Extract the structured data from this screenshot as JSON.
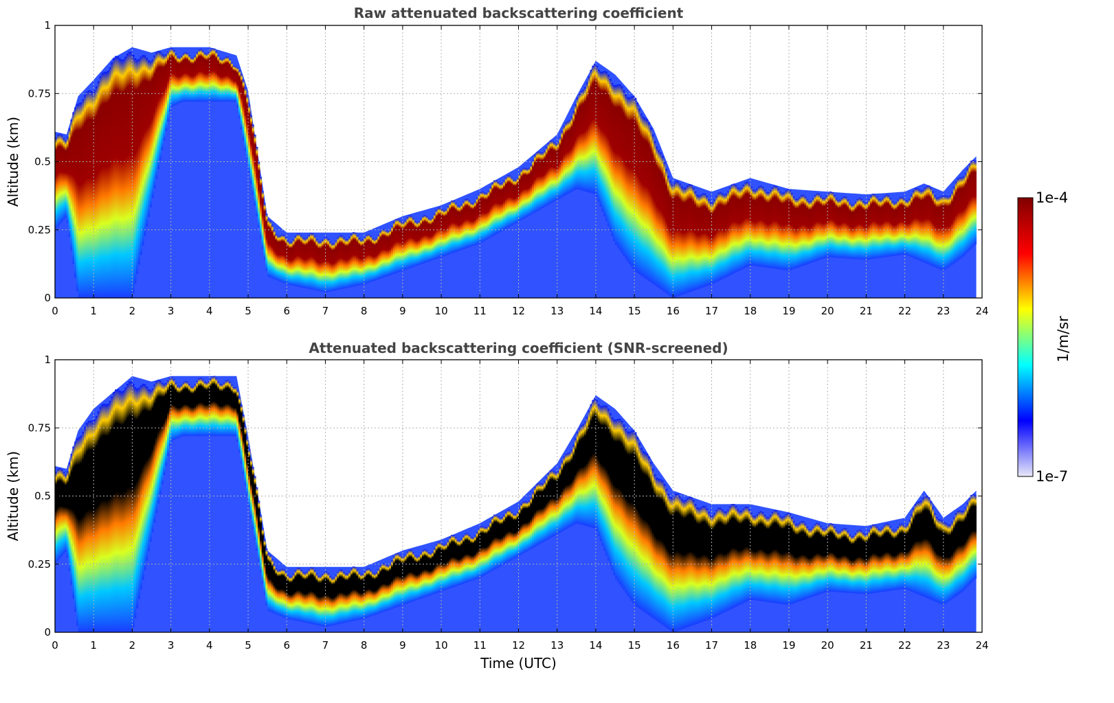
{
  "chart_data": [
    {
      "type": "heatmap",
      "title": "Raw attenuated backscattering coefficient",
      "xlabel": "",
      "ylabel": "Altitude (km)",
      "xlim": [
        0,
        24
      ],
      "ylim": [
        0,
        1
      ],
      "xticks": [
        "0",
        "1",
        "2",
        "3",
        "4",
        "5",
        "6",
        "7",
        "8",
        "9",
        "10",
        "11",
        "12",
        "13",
        "14",
        "15",
        "16",
        "17",
        "18",
        "19",
        "20",
        "21",
        "22",
        "23",
        "24"
      ],
      "yticks": [
        "0",
        "0.25",
        "0.5",
        "0.75",
        "1"
      ],
      "grid": true,
      "black_saturated_core": false,
      "layer_top_km": [
        [
          0,
          0.59
        ],
        [
          0.3,
          0.58
        ],
        [
          0.6,
          0.72
        ],
        [
          1.0,
          0.78
        ],
        [
          1.5,
          0.86
        ],
        [
          2.0,
          0.9
        ],
        [
          2.5,
          0.88
        ],
        [
          3.0,
          0.9
        ],
        [
          3.5,
          0.9
        ],
        [
          4.0,
          0.9
        ],
        [
          4.7,
          0.87
        ],
        [
          5.0,
          0.74
        ],
        [
          5.5,
          0.28
        ],
        [
          6.0,
          0.22
        ],
        [
          7.0,
          0.22
        ],
        [
          8.0,
          0.22
        ],
        [
          9.0,
          0.28
        ],
        [
          10.0,
          0.32
        ],
        [
          11.0,
          0.38
        ],
        [
          12.0,
          0.46
        ],
        [
          13.0,
          0.58
        ],
        [
          13.5,
          0.72
        ],
        [
          14.0,
          0.85
        ],
        [
          14.5,
          0.8
        ],
        [
          15.0,
          0.72
        ],
        [
          15.5,
          0.6
        ],
        [
          16.0,
          0.42
        ],
        [
          17.0,
          0.37
        ],
        [
          18.0,
          0.42
        ],
        [
          19.0,
          0.38
        ],
        [
          20.0,
          0.37
        ],
        [
          21.0,
          0.36
        ],
        [
          22.0,
          0.37
        ],
        [
          22.5,
          0.4
        ],
        [
          23.0,
          0.37
        ],
        [
          23.5,
          0.45
        ],
        [
          23.85,
          0.5
        ]
      ],
      "layer_base_km": [
        [
          0,
          0.25
        ],
        [
          0.3,
          0.3
        ],
        [
          0.6,
          0
        ],
        [
          1.0,
          0
        ],
        [
          2.0,
          0
        ],
        [
          3.0,
          0.7
        ],
        [
          3.3,
          0.72
        ],
        [
          4.7,
          0.72
        ],
        [
          5.5,
          0.08
        ],
        [
          6.0,
          0.05
        ],
        [
          7.0,
          0.02
        ],
        [
          8.0,
          0.05
        ],
        [
          9.0,
          0.1
        ],
        [
          10.0,
          0.15
        ],
        [
          11.0,
          0.2
        ],
        [
          12.0,
          0.28
        ],
        [
          13.0,
          0.36
        ],
        [
          13.5,
          0.4
        ],
        [
          14.0,
          0.38
        ],
        [
          14.5,
          0.2
        ],
        [
          15.0,
          0.1
        ],
        [
          15.5,
          0.05
        ],
        [
          16.0,
          0
        ],
        [
          17.0,
          0.05
        ],
        [
          18.0,
          0.12
        ],
        [
          19.0,
          0.1
        ],
        [
          20.0,
          0.15
        ],
        [
          21.0,
          0.14
        ],
        [
          22.0,
          0.16
        ],
        [
          23.0,
          0.1
        ],
        [
          23.5,
          0.15
        ],
        [
          23.85,
          0.2
        ]
      ],
      "data_end_hour": 23.85
    },
    {
      "type": "heatmap",
      "title": "Attenuated backscattering coefficient (SNR-screened)",
      "xlabel": "Time (UTC)",
      "ylabel": "Altitude (km)",
      "xlim": [
        0,
        24
      ],
      "ylim": [
        0,
        1
      ],
      "xticks": [
        "0",
        "1",
        "2",
        "3",
        "4",
        "5",
        "6",
        "7",
        "8",
        "9",
        "10",
        "11",
        "12",
        "13",
        "14",
        "15",
        "16",
        "17",
        "18",
        "19",
        "20",
        "21",
        "22",
        "23",
        "24"
      ],
      "yticks": [
        "0",
        "0.25",
        "0.5",
        "0.75",
        "1"
      ],
      "grid": true,
      "black_saturated_core": true,
      "layer_top_km": [
        [
          0,
          0.59
        ],
        [
          0.3,
          0.58
        ],
        [
          0.6,
          0.72
        ],
        [
          1.0,
          0.8
        ],
        [
          1.5,
          0.86
        ],
        [
          2.0,
          0.92
        ],
        [
          2.5,
          0.9
        ],
        [
          3.0,
          0.92
        ],
        [
          3.5,
          0.92
        ],
        [
          4.0,
          0.92
        ],
        [
          4.7,
          0.92
        ],
        [
          5.0,
          0.7
        ],
        [
          5.5,
          0.28
        ],
        [
          6.0,
          0.22
        ],
        [
          7.0,
          0.22
        ],
        [
          8.0,
          0.22
        ],
        [
          9.0,
          0.28
        ],
        [
          10.0,
          0.32
        ],
        [
          11.0,
          0.38
        ],
        [
          12.0,
          0.46
        ],
        [
          13.0,
          0.6
        ],
        [
          13.5,
          0.72
        ],
        [
          14.0,
          0.85
        ],
        [
          14.5,
          0.8
        ],
        [
          15.0,
          0.72
        ],
        [
          15.5,
          0.6
        ],
        [
          16.0,
          0.5
        ],
        [
          17.0,
          0.45
        ],
        [
          18.0,
          0.45
        ],
        [
          19.0,
          0.42
        ],
        [
          20.0,
          0.38
        ],
        [
          21.0,
          0.37
        ],
        [
          22.0,
          0.4
        ],
        [
          22.5,
          0.5
        ],
        [
          23.0,
          0.4
        ],
        [
          23.5,
          0.45
        ],
        [
          23.85,
          0.5
        ]
      ],
      "layer_base_km": [
        [
          0,
          0.25
        ],
        [
          0.3,
          0.3
        ],
        [
          0.6,
          0
        ],
        [
          1.0,
          0
        ],
        [
          2.0,
          0
        ],
        [
          3.0,
          0.7
        ],
        [
          3.3,
          0.72
        ],
        [
          4.7,
          0.72
        ],
        [
          5.5,
          0.08
        ],
        [
          6.0,
          0.05
        ],
        [
          7.0,
          0.02
        ],
        [
          8.0,
          0.05
        ],
        [
          9.0,
          0.1
        ],
        [
          10.0,
          0.15
        ],
        [
          11.0,
          0.2
        ],
        [
          12.0,
          0.28
        ],
        [
          13.0,
          0.36
        ],
        [
          13.5,
          0.4
        ],
        [
          14.0,
          0.38
        ],
        [
          14.5,
          0.2
        ],
        [
          15.0,
          0.1
        ],
        [
          15.5,
          0.05
        ],
        [
          16.0,
          0
        ],
        [
          17.0,
          0.05
        ],
        [
          18.0,
          0.12
        ],
        [
          19.0,
          0.1
        ],
        [
          20.0,
          0.15
        ],
        [
          21.0,
          0.14
        ],
        [
          22.0,
          0.16
        ],
        [
          23.0,
          0.1
        ],
        [
          23.5,
          0.15
        ],
        [
          23.85,
          0.2
        ]
      ],
      "data_end_hour": 23.85
    }
  ],
  "colorbar": {
    "label": "1/m/sr",
    "max_label": "1e-4",
    "min_label": "1e-7",
    "colormap": "jet",
    "colors": [
      "#e8e8f8",
      "#0000ff",
      "#00ffff",
      "#ffff00",
      "#ff0000",
      "#800000"
    ]
  }
}
